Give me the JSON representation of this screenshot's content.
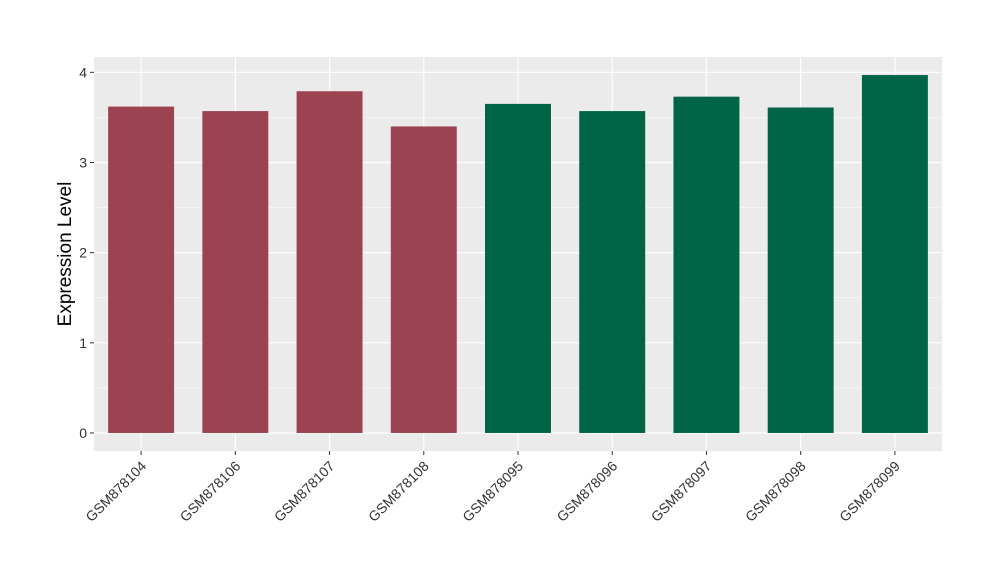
{
  "chart_data": {
    "type": "bar",
    "title": "",
    "xlabel": "",
    "ylabel": "Expression Level",
    "ylim": [
      -0.2,
      4.17
    ],
    "yticks": [
      0,
      1,
      2,
      3,
      4
    ],
    "grid": true,
    "legend": "none",
    "categories": [
      "GSM878104",
      "GSM878106",
      "GSM878107",
      "GSM878108",
      "GSM878095",
      "GSM878096",
      "GSM878097",
      "GSM878098",
      "GSM878099"
    ],
    "values": [
      3.62,
      3.57,
      3.79,
      3.4,
      3.65,
      3.57,
      3.73,
      3.61,
      3.97
    ],
    "bar_colors": [
      "#9b4350",
      "#9b4350",
      "#9b4350",
      "#9b4350",
      "#006446",
      "#006446",
      "#006446",
      "#006446",
      "#006446"
    ],
    "panel_background": "#ebebeb",
    "grid_color": "#ffffff"
  }
}
